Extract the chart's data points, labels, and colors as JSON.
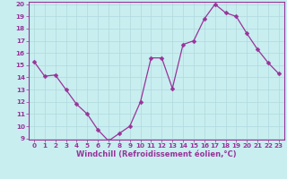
{
  "x": [
    0,
    1,
    2,
    3,
    4,
    5,
    6,
    7,
    8,
    9,
    10,
    11,
    12,
    13,
    14,
    15,
    16,
    17,
    18,
    19,
    20,
    21,
    22,
    23
  ],
  "y": [
    15.3,
    14.1,
    14.2,
    13.0,
    11.8,
    11.0,
    9.7,
    8.8,
    9.4,
    10.0,
    12.0,
    15.6,
    15.6,
    13.1,
    16.7,
    17.0,
    18.8,
    20.0,
    19.3,
    19.0,
    17.6,
    16.3,
    15.2,
    14.3
  ],
  "bg_color": "#c8eef0",
  "line_color": "#993399",
  "marker_color": "#993399",
  "grid_color": "#b0d8dc",
  "xlabel": "Windchill (Refroidissement éolien,°C)",
  "ylim": [
    9,
    20
  ],
  "xlim": [
    -0.5,
    23.5
  ],
  "yticks": [
    9,
    10,
    11,
    12,
    13,
    14,
    15,
    16,
    17,
    18,
    19,
    20
  ],
  "xticks": [
    0,
    1,
    2,
    3,
    4,
    5,
    6,
    7,
    8,
    9,
    10,
    11,
    12,
    13,
    14,
    15,
    16,
    17,
    18,
    19,
    20,
    21,
    22,
    23
  ],
  "tick_color": "#993399",
  "tick_fontsize": 5.2,
  "xlabel_fontsize": 6.0,
  "marker_size": 2.5,
  "line_width": 0.9
}
